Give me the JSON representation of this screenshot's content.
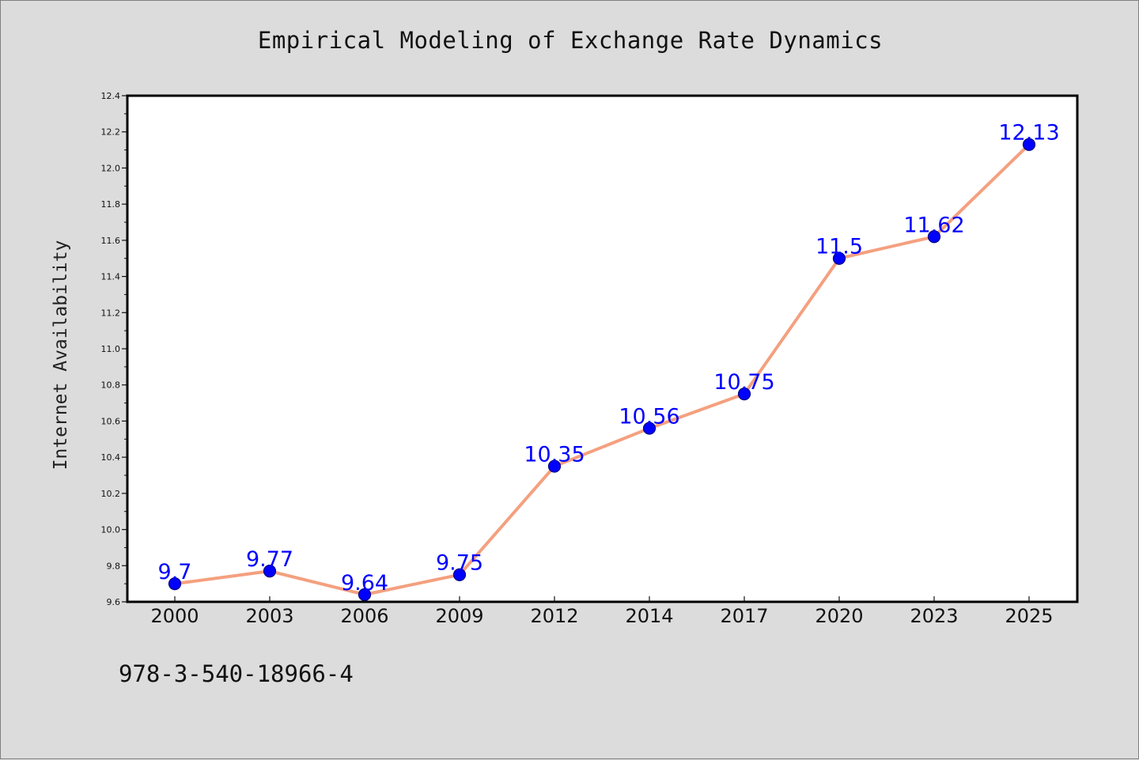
{
  "chart_data": {
    "type": "line",
    "title": "Empirical Modeling of Exchange Rate Dynamics",
    "xlabel": "",
    "ylabel": "Internet Availability",
    "categories": [
      "2000",
      "2003",
      "2006",
      "2009",
      "2012",
      "2014",
      "2017",
      "2020",
      "2023",
      "2025"
    ],
    "series": [
      {
        "values": [
          9.7,
          9.77,
          9.64,
          9.75,
          10.35,
          10.56,
          10.75,
          11.5,
          11.62,
          12.13
        ],
        "line_color": "#f4a07f",
        "marker_color": "#0000ff"
      }
    ],
    "data_labels": [
      "9.7",
      "9.77",
      "9.64",
      "9.75",
      "10.35",
      "10.56",
      "10.75",
      "11.5",
      "11.62",
      "12.13"
    ],
    "ylim": [
      9.6,
      12.4
    ],
    "yticks": [
      "9.6",
      "9.8",
      "10.0",
      "10.2",
      "10.4",
      "10.6",
      "10.8",
      "11.0",
      "11.2",
      "11.4",
      "11.6",
      "11.8",
      "12.0",
      "12.2",
      "12.4"
    ],
    "grid": false,
    "legend": "none"
  },
  "footnote": "978-3-540-18966-4",
  "colors": {
    "background": "#dcdcdc",
    "plot_background": "#ffffff",
    "line": "#f4a07f",
    "marker": "#0000ff",
    "data_label": "#0000ff"
  }
}
